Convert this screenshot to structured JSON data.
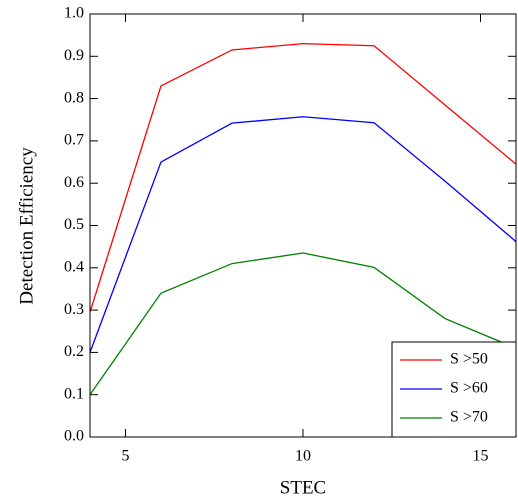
{
  "chart_data": {
    "type": "line",
    "x_label": "STEC",
    "y_label": "Detection Efficiency",
    "x": [
      4,
      6,
      8,
      10,
      12,
      14,
      16
    ],
    "series": [
      {
        "name": "S >50",
        "color": "#ff0000",
        "values": [
          0.295,
          0.83,
          0.915,
          0.93,
          0.925,
          0.785,
          0.645
        ]
      },
      {
        "name": "S >60",
        "color": "#0000ff",
        "values": [
          0.2,
          0.65,
          0.742,
          0.757,
          0.743,
          0.605,
          0.462
        ]
      },
      {
        "name": "S >70",
        "color": "#008000",
        "values": [
          0.1,
          0.34,
          0.41,
          0.435,
          0.401,
          0.28,
          0.21
        ]
      }
    ],
    "xlim": [
      4,
      16
    ],
    "xticks": [
      5,
      10,
      15
    ],
    "ylim": [
      0,
      1
    ],
    "yticks": [
      {
        "value": 0,
        "label": "0.0"
      },
      0.1,
      0.2,
      0.3,
      0.4,
      0.5,
      0.6,
      0.7,
      0.8,
      0.9,
      {
        "value": 1,
        "label": "1.0"
      }
    ],
    "legend": "lower right"
  }
}
